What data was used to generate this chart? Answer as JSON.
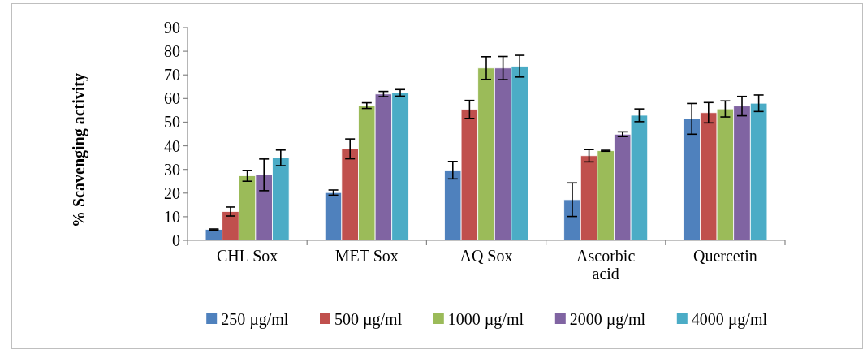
{
  "chart_data": {
    "type": "bar",
    "ylabel": "% Scavenging activity",
    "categories": [
      "CHL Sox",
      "MET Sox",
      "AQ Sox",
      "Ascorbic acid",
      "Quercetin"
    ],
    "ylim": [
      0,
      90
    ],
    "yticks": [
      0,
      10,
      20,
      30,
      40,
      50,
      60,
      70,
      80,
      90
    ],
    "grid": false,
    "legend": "bottom",
    "series": [
      {
        "name": "250 µg/ml",
        "color": "#4f81bd",
        "values": [
          4.6,
          20.2,
          29.7,
          17.2,
          51.4
        ],
        "errors": [
          0.2,
          1.1,
          3.7,
          7.1,
          6.5
        ]
      },
      {
        "name": "500 µg/ml",
        "color": "#c0504d",
        "values": [
          12.2,
          38.7,
          55.4,
          35.8,
          54.0
        ],
        "errors": [
          1.9,
          4.2,
          3.8,
          2.6,
          4.3
        ]
      },
      {
        "name": "1000 µg/ml",
        "color": "#9bbb59",
        "values": [
          27.3,
          57.0,
          72.9,
          37.9,
          55.6
        ],
        "errors": [
          2.3,
          1.2,
          4.8,
          0.2,
          3.4
        ]
      },
      {
        "name": "2000 µg/ml",
        "color": "#8064a2",
        "values": [
          27.7,
          61.9,
          72.9,
          44.9,
          56.8
        ],
        "errors": [
          6.7,
          1.1,
          4.9,
          1.0,
          4.1
        ]
      },
      {
        "name": "4000 µg/ml",
        "color": "#4bacc6",
        "values": [
          34.9,
          62.4,
          73.7,
          52.9,
          58.0
        ],
        "errors": [
          3.3,
          1.4,
          4.6,
          2.7,
          3.5
        ]
      }
    ]
  }
}
